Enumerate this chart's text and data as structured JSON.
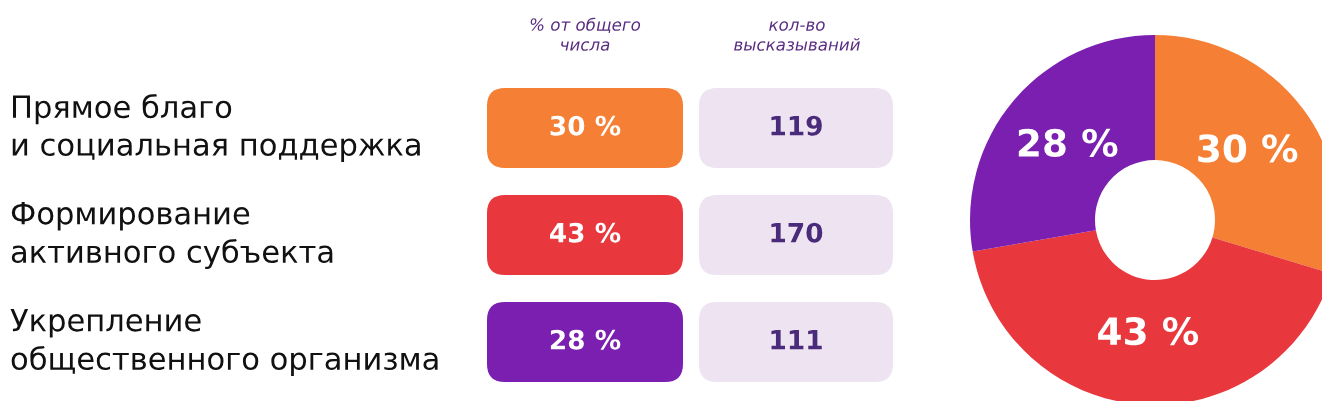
{
  "chart_data": [
    {
      "type": "other",
      "annotations": [
        "% от общего\nчисла",
        "кол-во\nвысказываний",
        "Прямое благо\nи социальная поддержка",
        "30 %",
        "119",
        "Формирование\nактивного субъекта",
        "43 %",
        "170",
        "Укрепление\nобщественного организма",
        "28 %",
        "111"
      ]
    },
    {
      "type": "donut",
      "categories": [
        null,
        null,
        null
      ],
      "values": [
        30,
        43,
        28
      ],
      "colors": [
        "#f57f35",
        "#e8373d",
        "#7a1fb0"
      ],
      "value_labels": [
        "30 %",
        "43 %",
        "28 %"
      ]
    }
  ]
}
